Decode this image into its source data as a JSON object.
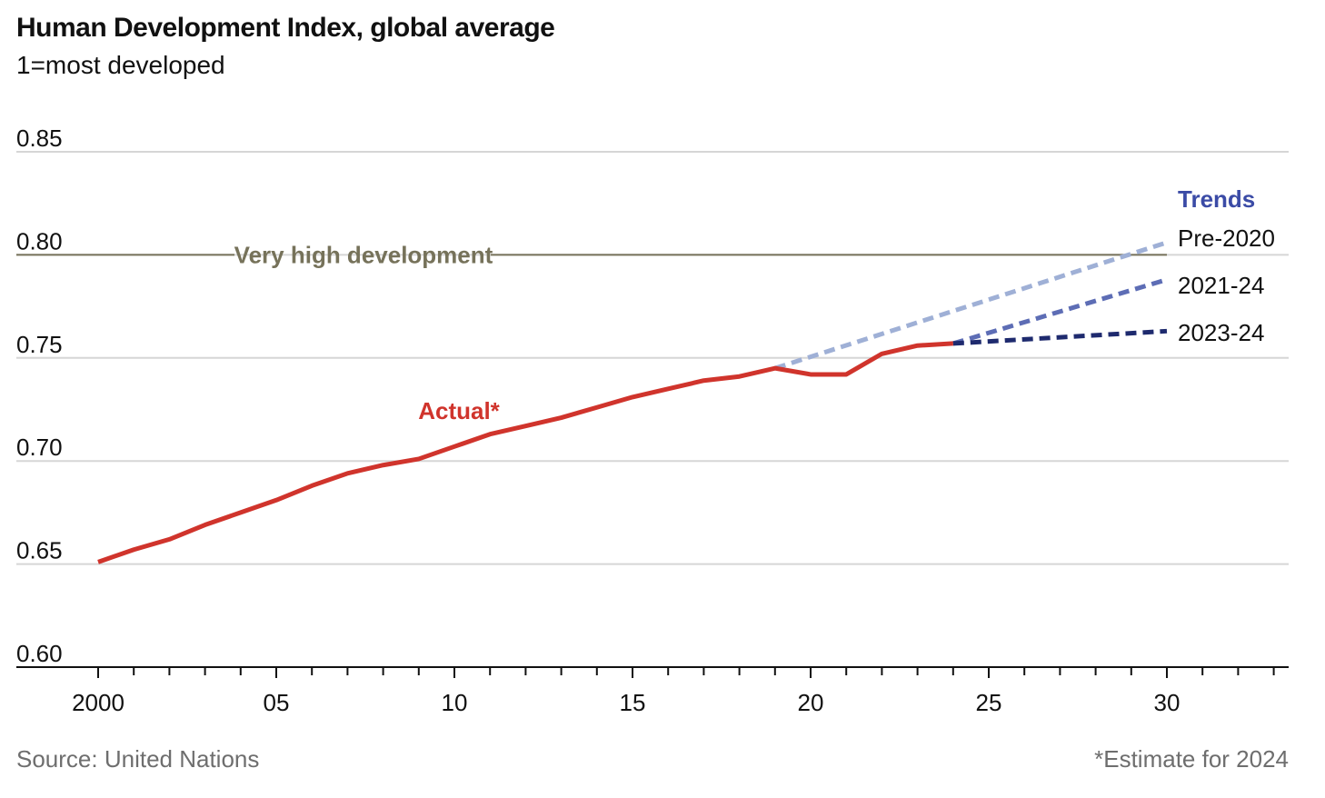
{
  "title": "Human Development Index, global average",
  "subtitle": "1=most developed",
  "source": "Source: United Nations",
  "footnote": "*Estimate for 2024",
  "chart_data": {
    "type": "line",
    "xlim": [
      2000,
      2030
    ],
    "ylim": [
      0.6,
      0.85
    ],
    "yticks": [
      {
        "value": 0.85,
        "label": "0.85"
      },
      {
        "value": 0.8,
        "label": "0.80"
      },
      {
        "value": 0.75,
        "label": "0.75"
      },
      {
        "value": 0.7,
        "label": "0.70"
      },
      {
        "value": 0.65,
        "label": "0.65"
      },
      {
        "value": 0.6,
        "label": "0.60"
      }
    ],
    "xticks": [
      {
        "value": 2000,
        "label": "2000"
      },
      {
        "value": 2005,
        "label": "05"
      },
      {
        "value": 2010,
        "label": "10"
      },
      {
        "value": 2015,
        "label": "15"
      },
      {
        "value": 2020,
        "label": "20"
      },
      {
        "value": 2025,
        "label": "25"
      },
      {
        "value": 2030,
        "label": "30"
      }
    ],
    "reference_line": {
      "value": 0.8,
      "label": "Very high development"
    },
    "actual": {
      "label": "Actual*",
      "color": "#d0342c",
      "x": [
        2000,
        2001,
        2002,
        2003,
        2004,
        2005,
        2006,
        2007,
        2008,
        2009,
        2010,
        2011,
        2012,
        2013,
        2014,
        2015,
        2016,
        2017,
        2018,
        2019,
        2020,
        2021,
        2022,
        2023,
        2024
      ],
      "y": [
        0.651,
        0.657,
        0.662,
        0.669,
        0.675,
        0.681,
        0.688,
        0.694,
        0.698,
        0.701,
        0.707,
        0.713,
        0.717,
        0.721,
        0.726,
        0.731,
        0.735,
        0.739,
        0.741,
        0.745,
        0.742,
        0.742,
        0.752,
        0.756,
        0.757
      ]
    },
    "trends_label": "Trends",
    "trends_color": "#3b4ba6",
    "trends": [
      {
        "name": "Pre-2020",
        "color": "#9fb0d6",
        "x": [
          2019,
          2030
        ],
        "y": [
          0.745,
          0.806
        ]
      },
      {
        "name": "2021-24",
        "color": "#5d6db5",
        "x": [
          2024,
          2030
        ],
        "y": [
          0.757,
          0.788
        ]
      },
      {
        "name": "2023-24",
        "color": "#1e2a6e",
        "x": [
          2024,
          2030
        ],
        "y": [
          0.757,
          0.763
        ]
      }
    ]
  }
}
